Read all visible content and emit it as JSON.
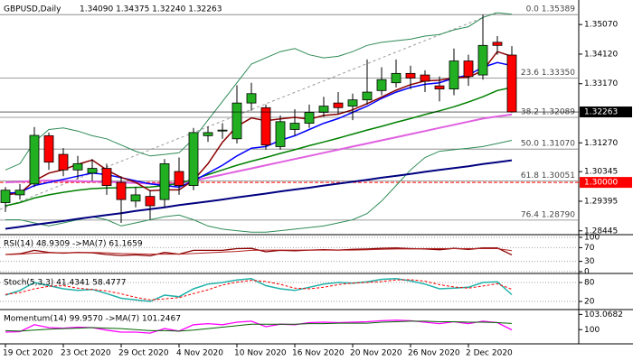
{
  "chart_data": [
    {
      "type": "candlestick",
      "title": "GBPUSD,Daily",
      "ohlc_label": "1.34090 1.34375 1.32240 1.32263",
      "categories": [
        "19 Oct 2020",
        null,
        null,
        null,
        "23 Oct 2020",
        null,
        null,
        null,
        "29 Oct 2020",
        null,
        null,
        null,
        "4 Nov 2020",
        null,
        null,
        null,
        "10 Nov 2020",
        null,
        null,
        null,
        "16 Nov 2020",
        null,
        null,
        null,
        "20 Nov 2020",
        null,
        null,
        null,
        "26 Nov 2020",
        null,
        null,
        null,
        "2 Dec 2020",
        null,
        null,
        null
      ],
      "open": [
        1.2935,
        1.296,
        1.2995,
        1.315,
        1.309,
        1.304,
        1.303,
        1.3045,
        1.3,
        1.294,
        1.2955,
        1.2945,
        1.3035,
        1.299,
        1.315,
        1.3165,
        1.314,
        1.3255,
        1.324,
        1.3115,
        1.317,
        1.319,
        1.3225,
        1.3255,
        1.3245,
        1.3265,
        1.3295,
        1.332,
        1.335,
        1.3345,
        1.331,
        1.33,
        1.339,
        1.3345,
        1.345,
        1.3409
      ],
      "high": [
        1.2985,
        1.2995,
        1.3178,
        1.316,
        1.311,
        1.3085,
        1.3075,
        1.306,
        1.302,
        1.2985,
        1.2975,
        1.3075,
        1.308,
        1.3175,
        1.318,
        1.319,
        1.3312,
        1.332,
        1.325,
        1.3215,
        1.3235,
        1.325,
        1.3275,
        1.329,
        1.3285,
        1.3395,
        1.337,
        1.3395,
        1.3375,
        1.336,
        1.334,
        1.343,
        1.341,
        1.3539,
        1.347,
        1.34375
      ],
      "low": [
        1.2905,
        1.2945,
        1.2985,
        1.304,
        1.302,
        1.301,
        1.3005,
        1.296,
        1.287,
        1.292,
        1.288,
        1.292,
        1.296,
        1.2975,
        1.313,
        1.314,
        1.3125,
        1.323,
        1.3105,
        1.3105,
        1.315,
        1.3175,
        1.321,
        1.322,
        1.32,
        1.325,
        1.328,
        1.3305,
        1.33,
        1.329,
        1.326,
        1.328,
        1.331,
        1.333,
        1.341,
        1.3224
      ],
      "close": [
        1.2975,
        1.2975,
        1.3151,
        1.3065,
        1.304,
        1.306,
        1.3045,
        1.299,
        1.2945,
        1.296,
        1.2925,
        1.306,
        1.299,
        1.316,
        1.316,
        1.3168,
        1.3255,
        1.3285,
        1.312,
        1.3195,
        1.319,
        1.3225,
        1.3245,
        1.324,
        1.3265,
        1.329,
        1.333,
        1.335,
        1.3335,
        1.3325,
        1.33,
        1.339,
        1.334,
        1.344,
        1.344,
        1.32263
      ],
      "up_color": "#22b022",
      "down_color": "#ff0000",
      "series": [
        {
          "color": "#2e8b57",
          "values": [
            1.304,
            1.306,
            1.313,
            1.317,
            1.3175,
            1.3165,
            1.315,
            1.314,
            1.312,
            1.31,
            1.3085,
            1.309,
            1.3095,
            1.314,
            1.32,
            1.326,
            1.332,
            1.338,
            1.34,
            1.342,
            1.343,
            1.341,
            1.34,
            1.3405,
            1.342,
            1.344,
            1.345,
            1.3455,
            1.346,
            1.347,
            1.3475,
            1.349,
            1.35,
            1.353,
            1.3545,
            1.354
          ]
        },
        {
          "color": "#2e8b57",
          "values": [
            1.288,
            1.288,
            1.287,
            1.286,
            1.287,
            1.288,
            1.289,
            1.288,
            1.286,
            1.287,
            1.288,
            1.289,
            1.2895,
            1.288,
            1.286,
            1.285,
            1.2845,
            1.284,
            1.284,
            1.2845,
            1.285,
            1.2855,
            1.286,
            1.287,
            1.288,
            1.29,
            1.294,
            1.299,
            1.304,
            1.308,
            1.31,
            1.3105,
            1.311,
            1.3115,
            1.3125,
            1.3135
          ]
        },
        {
          "color": "#000080",
          "values": [
            1.2851,
            1.2857,
            1.2864,
            1.287,
            1.2876,
            1.2883,
            1.2889,
            1.2895,
            1.2901,
            1.2908,
            1.2914,
            1.292,
            1.2927,
            1.2933,
            1.2939,
            1.2945,
            1.2952,
            1.2958,
            1.2964,
            1.2971,
            1.2977,
            1.2983,
            1.299,
            1.2996,
            1.3002,
            1.3008,
            1.3015,
            1.3021,
            1.3027,
            1.3034,
            1.304,
            1.3046,
            1.3052,
            1.3059,
            1.3065,
            1.3071
          ]
        },
        {
          "color": "#e060e0",
          "values": [
            1.3,
            1.3002,
            1.3005,
            1.3006,
            1.3005,
            1.3004,
            1.3003,
            1.3002,
            1.3,
            1.2998,
            1.2996,
            1.2996,
            1.2998,
            1.3005,
            1.3015,
            1.3025,
            1.3035,
            1.3045,
            1.3055,
            1.3065,
            1.3075,
            1.3085,
            1.3095,
            1.3105,
            1.3115,
            1.3125,
            1.3135,
            1.3145,
            1.3155,
            1.3165,
            1.3175,
            1.3185,
            1.3195,
            1.3205,
            1.3212,
            1.3218
          ]
        },
        {
          "color": "#008000",
          "values": [
            1.2925,
            1.2935,
            1.295,
            1.296,
            1.2968,
            1.2975,
            1.298,
            1.2982,
            1.2983,
            1.2984,
            1.2985,
            1.299,
            1.2997,
            1.301,
            1.3025,
            1.304,
            1.3055,
            1.3068,
            1.308,
            1.3093,
            1.3105,
            1.3118,
            1.313,
            1.3142,
            1.3155,
            1.3168,
            1.318,
            1.3193,
            1.3205,
            1.3218,
            1.323,
            1.3243,
            1.3258,
            1.3275,
            1.3295,
            1.3305
          ]
        },
        {
          "color": "#0000ff",
          "values": [
            1.2965,
            1.2968,
            1.299,
            1.3,
            1.301,
            1.302,
            1.303,
            1.3025,
            1.3015,
            1.3005,
            1.2995,
            1.299,
            1.2985,
            1.3005,
            1.303,
            1.3055,
            1.3085,
            1.311,
            1.3115,
            1.3135,
            1.315,
            1.317,
            1.319,
            1.3205,
            1.3225,
            1.3245,
            1.327,
            1.329,
            1.3305,
            1.3315,
            1.332,
            1.3335,
            1.3345,
            1.337,
            1.3385,
            1.3375
          ]
        },
        {
          "color": "#8b0000",
          "values": [
            1.296,
            1.2965,
            1.3005,
            1.303,
            1.3041,
            1.3058,
            1.3072,
            1.304,
            1.3016,
            1.3,
            1.2973,
            1.2976,
            1.2976,
            1.3007,
            1.306,
            1.3129,
            1.318,
            1.3207,
            1.3198,
            1.3204,
            1.3209,
            1.3203,
            1.3215,
            1.3219,
            1.3233,
            1.3253,
            1.3274,
            1.3296,
            1.3314,
            1.3326,
            1.3328,
            1.3336,
            1.3338,
            1.3359,
            1.342,
            1.3405
          ]
        }
      ],
      "fib_levels": [
        {
          "value": 1.35389,
          "label": "0.0 1.35389"
        },
        {
          "value": 1.3335,
          "label": "23.6 1.33350"
        },
        {
          "value": 1.32089,
          "label": "38.2 1.32089"
        },
        {
          "value": 1.3107,
          "label": "50.0 1.31070"
        },
        {
          "value": 1.30051,
          "label": "61.8 1.30051"
        },
        {
          "value": 1.2879,
          "label": "76.4 1.28790"
        }
      ],
      "level": {
        "value": 1.3,
        "label": "1.30000"
      },
      "last_price": 1.32263,
      "ylim": [
        1.2838,
        1.358
      ],
      "yticks": [
        {
          "value": 1.3507,
          "label": "1.35070"
        },
        {
          "value": 1.3412,
          "label": "1.34120"
        },
        {
          "value": 1.3317,
          "label": "1.33170"
        },
        {
          "value": 1.3127,
          "label": "1.31270"
        },
        1.30345,
        1.29395,
        1.28445
      ],
      "grid": false
    },
    {
      "type": "line",
      "title": "RSI(14) 48.9309 ->MA(7) 61.1659",
      "ylim": [
        0,
        100
      ],
      "yticks": [
        0,
        30,
        70,
        100
      ],
      "grid": true,
      "series": [
        {
          "color": "#8b0000",
          "values": [
            50,
            52,
            62,
            56,
            54,
            56,
            55,
            50,
            47,
            49,
            46,
            56,
            51,
            62,
            62,
            62,
            67,
            68,
            58,
            62,
            61,
            63,
            64,
            63,
            65,
            66,
            68,
            69,
            67,
            66,
            64,
            68,
            65,
            69,
            69,
            48.9309
          ]
        },
        {
          "color": "#b22222",
          "values": [
            50,
            51,
            54,
            55,
            55,
            56,
            56,
            55,
            53,
            52,
            51,
            51,
            51,
            53,
            55,
            57,
            59,
            62,
            63,
            63,
            63,
            63,
            63,
            63,
            63,
            64,
            65,
            66,
            66,
            67,
            67,
            67,
            67,
            67,
            67,
            61.1659
          ]
        }
      ]
    },
    {
      "type": "line",
      "title": "Stoch(5,3,3) 41.4341 58.4777",
      "ylim": [
        0,
        100
      ],
      "yticks": [
        20,
        80
      ],
      "grid": true,
      "series": [
        {
          "color": "#20b2aa",
          "values": [
            40,
            55,
            80,
            70,
            60,
            55,
            58,
            45,
            30,
            25,
            20,
            40,
            35,
            60,
            75,
            80,
            88,
            92,
            70,
            60,
            55,
            65,
            75,
            80,
            78,
            82,
            90,
            92,
            85,
            75,
            60,
            62,
            65,
            80,
            82,
            41.4341
          ]
        },
        {
          "color": "#ff0000",
          "style": "dashed",
          "values": [
            42,
            48,
            60,
            68,
            70,
            62,
            58,
            53,
            44,
            33,
            25,
            28,
            32,
            45,
            57,
            72,
            81,
            87,
            83,
            74,
            62,
            60,
            65,
            73,
            78,
            80,
            83,
            88,
            89,
            84,
            73,
            66,
            62,
            69,
            76,
            58.4777
          ]
        }
      ]
    },
    {
      "type": "line",
      "title": "Momentum(14) 99.9570 ->MA(7) 101.2467",
      "ylim": [
        97.5,
        103.5
      ],
      "yticks": [
        100,
        103.0682
      ],
      "grid": false,
      "series": [
        {
          "color": "#ff00ff",
          "values": [
            99.5,
            99.6,
            101.0,
            100.4,
            100.3,
            100.5,
            100.4,
            99.9,
            99.5,
            99.5,
            99.3,
            100.2,
            99.7,
            101.0,
            101.2,
            101.0,
            101.5,
            101.7,
            100.6,
            101.1,
            101.0,
            101.4,
            101.5,
            101.4,
            101.5,
            101.6,
            101.8,
            101.9,
            101.8,
            101.5,
            101.2,
            101.6,
            101.2,
            101.7,
            101.4,
            99.957
          ]
        },
        {
          "color": "#006400",
          "values": [
            99.8,
            99.7,
            99.9,
            100.1,
            100.2,
            100.3,
            100.4,
            100.3,
            100.2,
            100.0,
            99.8,
            99.8,
            99.7,
            99.9,
            100.2,
            100.5,
            100.8,
            101.1,
            101.1,
            101.1,
            101.1,
            101.2,
            101.2,
            101.3,
            101.3,
            101.3,
            101.5,
            101.6,
            101.7,
            101.7,
            101.6,
            101.6,
            101.5,
            101.5,
            101.4,
            101.2467
          ]
        }
      ]
    }
  ]
}
